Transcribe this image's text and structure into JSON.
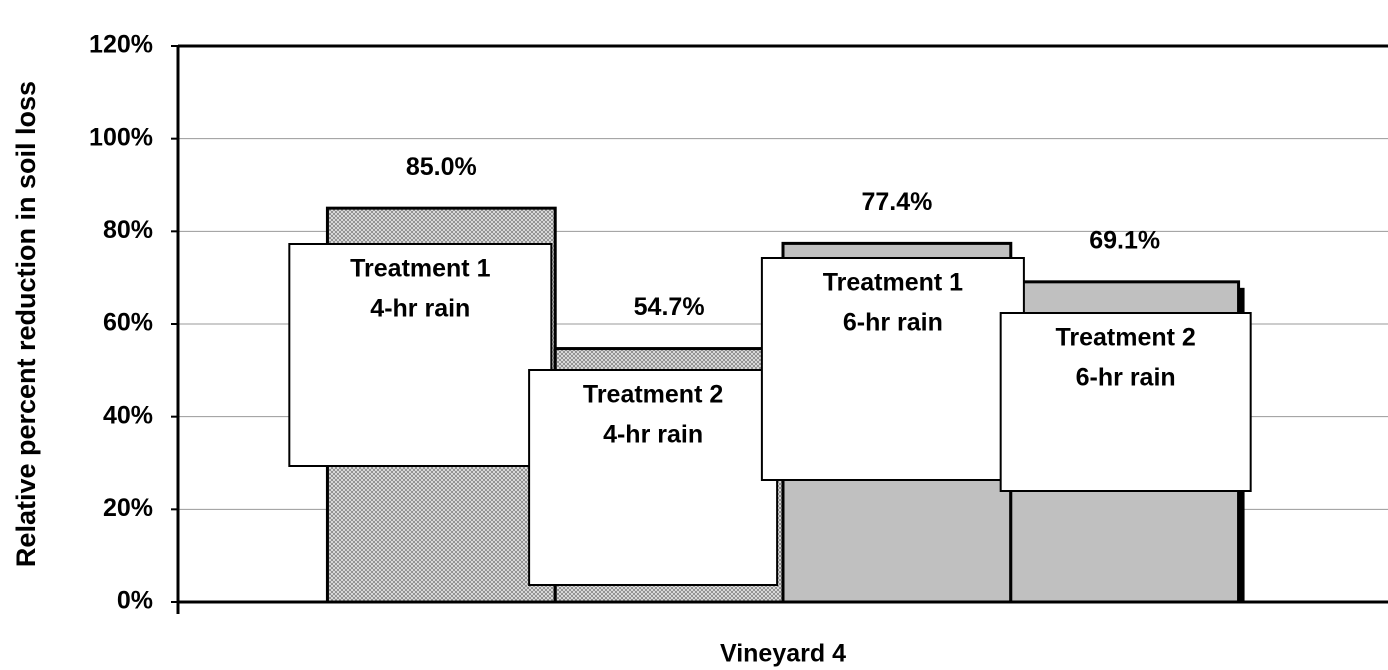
{
  "chart_data": {
    "type": "bar",
    "categories": [
      "Vineyard 4"
    ],
    "xlabel": "Vineyard 4",
    "ylabel": "Relative percent reduction in soil loss",
    "series": [
      {
        "label": [
          "Treatment 1",
          "4-hr rain"
        ],
        "color": "#d9d9d9",
        "pattern": true,
        "values": [
          85.0
        ],
        "value_labels": [
          "85.0%"
        ]
      },
      {
        "label": [
          "Treatment 2",
          "4-hr rain"
        ],
        "color": "#d9d9d9",
        "pattern": true,
        "values": [
          54.7
        ],
        "value_labels": [
          "54.7%"
        ]
      },
      {
        "label": [
          "Treatment 1",
          "6-hr rain"
        ],
        "color": "#c0c0c0",
        "pattern": false,
        "values": [
          77.4
        ],
        "value_labels": [
          "77.4%"
        ]
      },
      {
        "label": [
          "Treatment 2",
          "6-hr rain"
        ],
        "color": "#c0c0c0",
        "pattern": false,
        "values": [
          69.1
        ],
        "value_labels": [
          "69.1%"
        ]
      }
    ],
    "ylim": [
      0,
      120
    ],
    "yticks": [
      {
        "value": 0,
        "label": "0%"
      },
      {
        "value": 20,
        "label": "20%"
      },
      {
        "value": 40,
        "label": "40%"
      },
      {
        "value": 60,
        "label": "60%"
      },
      {
        "value": 80,
        "label": "80%"
      },
      {
        "value": 100,
        "label": "100%"
      },
      {
        "value": 120,
        "label": "120%"
      }
    ],
    "grid": true
  }
}
